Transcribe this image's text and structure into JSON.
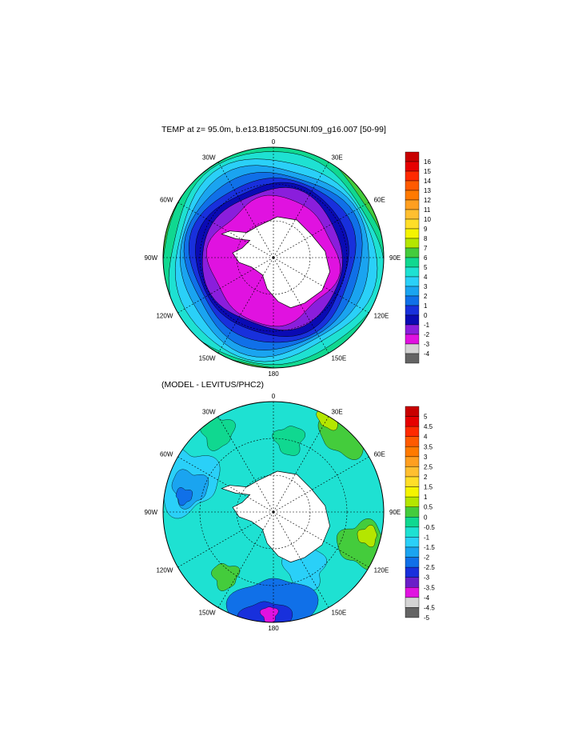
{
  "panels": [
    {
      "title": "TEMP at z=  95.0m, b.e13.B1850C5UNI.f09_g16.007 [50-99]",
      "cx": 342,
      "cy": 322,
      "r": 138,
      "colorbar": {
        "labels": [
          "16",
          "15",
          "14",
          "13",
          "12",
          "11",
          "10",
          "9",
          "8",
          "7",
          "6",
          "5",
          "4",
          "3",
          "2",
          "1",
          "0",
          "-1",
          "-2",
          "-3",
          "-4"
        ],
        "colors": [
          "#c80000",
          "#e60000",
          "#ff2a00",
          "#ff5a00",
          "#ff7a00",
          "#ff9f20",
          "#ffbf30",
          "#ffde28",
          "#f4f400",
          "#b4e600",
          "#44cc3c",
          "#10d890",
          "#1ee1d2",
          "#2ad0f8",
          "#1aa4f0",
          "#1070e8",
          "#1830dc",
          "#0a0ab4",
          "#8a1edc",
          "#e012e0",
          "#d4d4d4",
          "#646464"
        ]
      },
      "map_colors": [
        "#1830dc",
        "#1070e8",
        "#1aa4f0",
        "#2ad0f8",
        "#1ee1d2",
        "#10d890"
      ],
      "inner_color": "#e012e0",
      "ring_color": "#8a1edc"
    },
    {
      "title": "(MODEL - LEVITUS/PHC2)",
      "cx": 342,
      "cy": 640,
      "r": 138,
      "colorbar": {
        "labels": [
          "5",
          "4.5",
          "4",
          "3.5",
          "3",
          "2.5",
          "2",
          "1.5",
          "1",
          "0.5",
          "0",
          "-0.5",
          "-1",
          "-1.5",
          "-2",
          "-2.5",
          "-3",
          "-3.5",
          "-4",
          "-4.5",
          "-5"
        ],
        "colors": [
          "#c80000",
          "#e60000",
          "#ff2a00",
          "#ff5a00",
          "#ff7a00",
          "#ff9f20",
          "#ffbf30",
          "#ffde28",
          "#f4f400",
          "#b4e600",
          "#44cc3c",
          "#10d890",
          "#1ee1d2",
          "#2ad0f8",
          "#1aa4f0",
          "#1070e8",
          "#1830dc",
          "#6a1ec8",
          "#e012e0",
          "#d4d4d4",
          "#646464"
        ]
      }
    }
  ],
  "longitude_labels": {
    "top": "0",
    "bottom": "180",
    "l30w": "30W",
    "l30e": "30E",
    "l60w": "60W",
    "l60e": "60E",
    "l90w": "90W",
    "l90e": "90E",
    "l120w": "120W",
    "l120e": "120E",
    "l150w": "150W",
    "l150e": "150E"
  }
}
